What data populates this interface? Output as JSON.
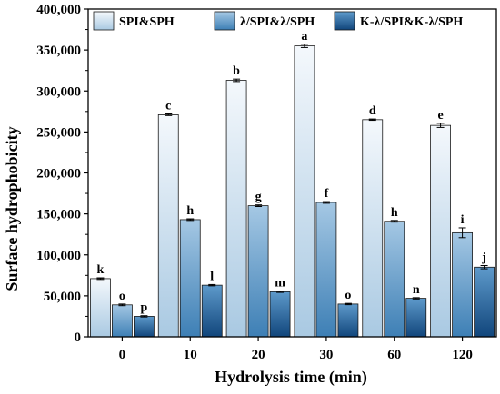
{
  "chart_data": {
    "type": "bar",
    "title": "",
    "xlabel": "Hydrolysis time (min)",
    "ylabel": "Surface hydrophobicity",
    "categories": [
      "0",
      "10",
      "20",
      "30",
      "60",
      "120"
    ],
    "ylim": [
      0,
      400000
    ],
    "yticks": [
      0,
      50000,
      100000,
      150000,
      200000,
      250000,
      300000,
      350000,
      400000
    ],
    "ytick_labels": [
      "0",
      "50,000",
      "100,000",
      "150,000",
      "200,000",
      "250,000",
      "300,000",
      "350,000",
      "400,000"
    ],
    "legend_position": "top",
    "grid": false,
    "series": [
      {
        "name": "SPI&SPH",
        "color_top": "#f4f8fc",
        "color_bottom": "#a9c9e2",
        "values": [
          71000,
          271000,
          313000,
          355000,
          265000,
          258000
        ],
        "errors": [
          1000,
          1000,
          1500,
          2000,
          800,
          2500
        ],
        "letters": [
          "k",
          "c",
          "b",
          "a",
          "d",
          "e"
        ]
      },
      {
        "name": "λ/SPI&λ/SPH",
        "color_top": "#a5c8e4",
        "color_bottom": "#3d7fb5",
        "values": [
          39000,
          143000,
          160000,
          164000,
          141000,
          127000
        ],
        "errors": [
          1000,
          1000,
          1000,
          1000,
          1000,
          6000
        ],
        "letters": [
          "o",
          "h",
          "g",
          "f",
          "h",
          "i"
        ]
      },
      {
        "name": "K-λ/SPI&K-λ/SPH",
        "color_top": "#5e9acb",
        "color_bottom": "#10457b",
        "values": [
          25000,
          63000,
          55000,
          40000,
          47000,
          85000
        ],
        "errors": [
          800,
          800,
          800,
          800,
          800,
          2000
        ],
        "letters": [
          "p",
          "l",
          "m",
          "o",
          "n",
          "j"
        ]
      }
    ]
  }
}
